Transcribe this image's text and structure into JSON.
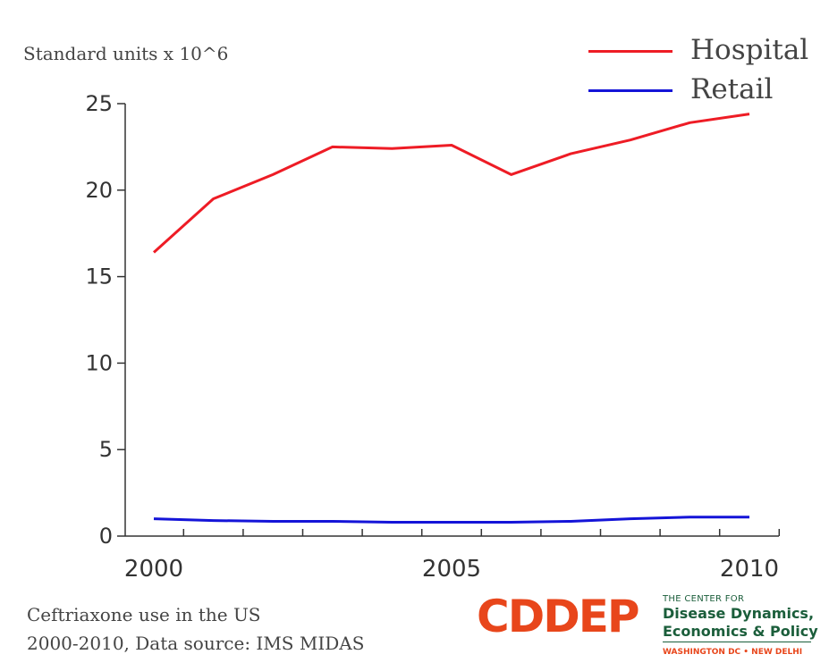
{
  "chart_data": {
    "type": "line",
    "ylabel": "Standard units x 10^6",
    "x": [
      2000,
      2001,
      2002,
      2003,
      2004,
      2005,
      2006,
      2007,
      2008,
      2009,
      2010
    ],
    "series": [
      {
        "name": "Hospital",
        "color": "#ee1c25",
        "values": [
          16.4,
          19.5,
          20.9,
          22.5,
          22.4,
          22.6,
          20.9,
          22.1,
          22.9,
          23.9,
          24.4
        ]
      },
      {
        "name": "Retail",
        "color": "#1414d8",
        "values": [
          1.0,
          0.9,
          0.85,
          0.85,
          0.8,
          0.8,
          0.8,
          0.85,
          1.0,
          1.1,
          1.1
        ]
      }
    ],
    "xlim": [
      2000,
      2010
    ],
    "ylim": [
      0,
      25
    ],
    "yticks": [
      0,
      5,
      10,
      15,
      20,
      25
    ],
    "xtick_labels": [
      2000,
      2005,
      2010
    ],
    "legend": "top-right",
    "grid": false
  },
  "caption": {
    "line1": "Ceftriaxone use in the US",
    "line2": "2000-2010, Data source: IMS MIDAS"
  },
  "logo": {
    "wordmark": "CDDEP",
    "small_text": "THE CENTER FOR",
    "line1": "Disease Dynamics,",
    "line2": "Economics & Policy",
    "cities": "WASHINGTON DC • NEW DELHI",
    "wordmark_color": "#e8461b",
    "text_color": "#1b5e3b",
    "accent_color": "#e8461b"
  }
}
